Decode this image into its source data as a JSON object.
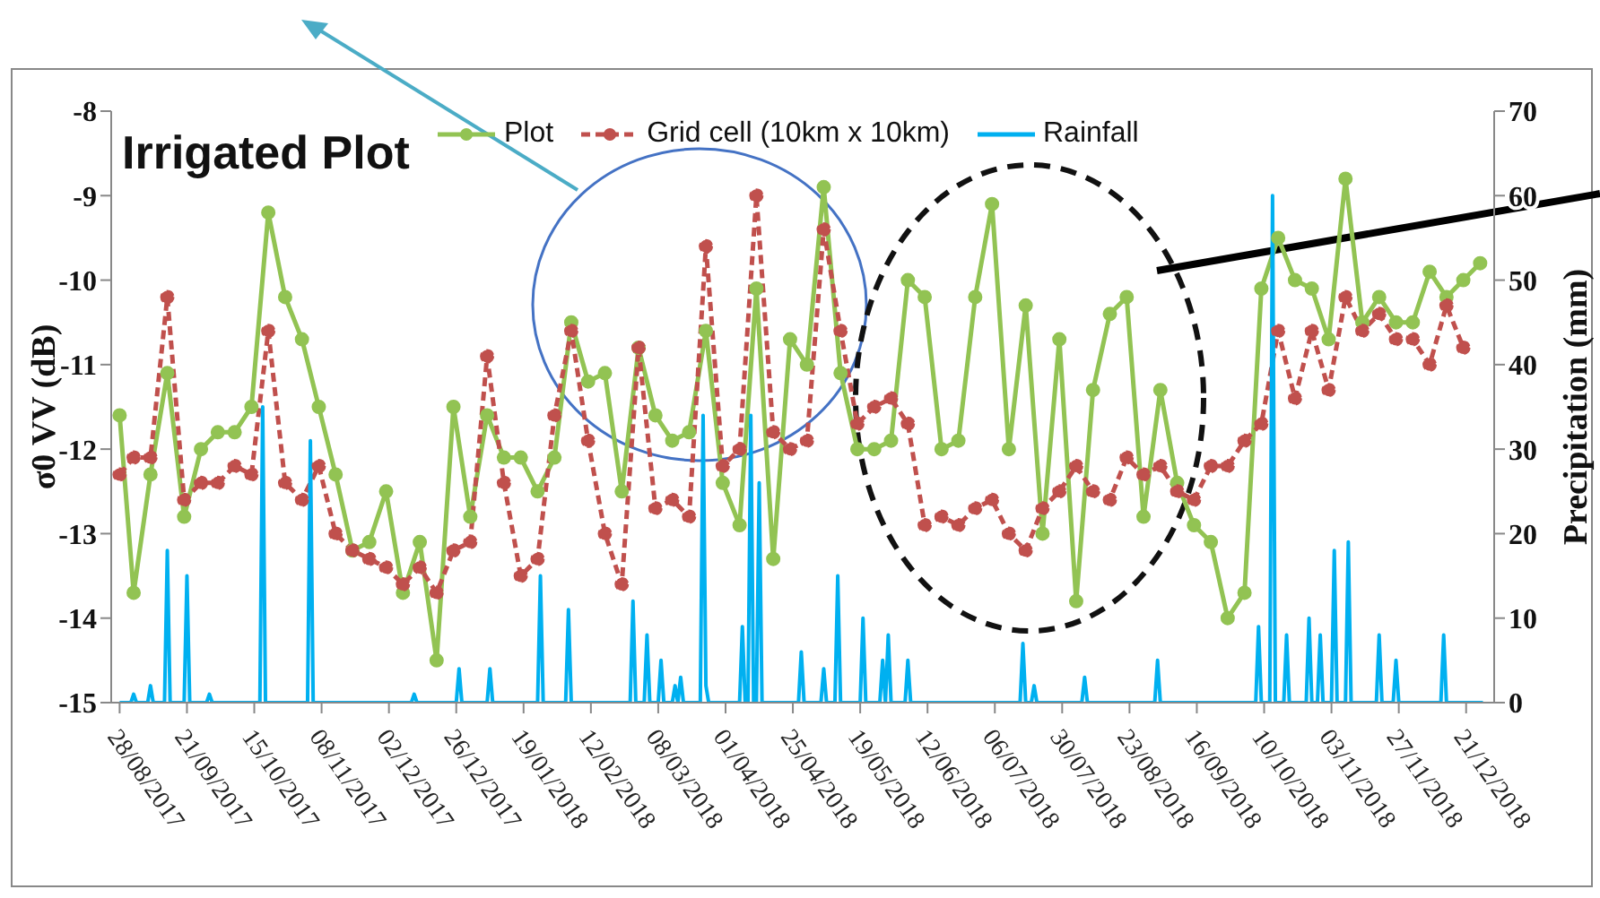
{
  "chart_data": {
    "type": "line",
    "title": "Irrigated Plot",
    "ylabel": "σ0 VV (dB)",
    "y2label": "Precipitation (mm)",
    "legend": "top",
    "xlim": [
      "2017-08-25",
      "2018-12-31"
    ],
    "xticks": [
      {
        "value": "2017-08-28",
        "label": "28/08/2017"
      },
      {
        "value": "2017-09-21",
        "label": "21/09/2017"
      },
      {
        "value": "2017-10-15",
        "label": "15/10/2017"
      },
      {
        "value": "2017-11-08",
        "label": "08/11/2017"
      },
      {
        "value": "2017-12-02",
        "label": "02/12/2017"
      },
      {
        "value": "2017-12-26",
        "label": "26/12/2017"
      },
      {
        "value": "2018-01-19",
        "label": "19/01/2018"
      },
      {
        "value": "2018-02-12",
        "label": "12/02/2018"
      },
      {
        "value": "2018-03-08",
        "label": "08/03/2018"
      },
      {
        "value": "2018-04-01",
        "label": "01/04/2018"
      },
      {
        "value": "2018-04-25",
        "label": "25/04/2018"
      },
      {
        "value": "2018-05-19",
        "label": "19/05/2018"
      },
      {
        "value": "2018-06-12",
        "label": "12/06/2018"
      },
      {
        "value": "2018-07-06",
        "label": "06/07/2018"
      },
      {
        "value": "2018-07-30",
        "label": "30/07/2018"
      },
      {
        "value": "2018-08-23",
        "label": "23/08/2018"
      },
      {
        "value": "2018-09-16",
        "label": "16/09/2018"
      },
      {
        "value": "2018-10-10",
        "label": "10/10/2018"
      },
      {
        "value": "2018-11-03",
        "label": "03/11/2018"
      },
      {
        "value": "2018-11-27",
        "label": "27/11/2018"
      },
      {
        "value": "2018-12-21",
        "label": "21/12/2018"
      }
    ],
    "ylim": [
      -15,
      -8
    ],
    "yticks": [
      -15,
      -14,
      -13,
      -12,
      -11,
      -10,
      -9,
      -8
    ],
    "y2lim": [
      0,
      70
    ],
    "y2ticks": [
      0,
      10,
      20,
      30,
      40,
      50,
      60,
      70
    ],
    "x": [
      "2017-08-28",
      "2017-09-02",
      "2017-09-08",
      "2017-09-14",
      "2017-09-20",
      "2017-09-26",
      "2017-10-02",
      "2017-10-08",
      "2017-10-14",
      "2017-10-20",
      "2017-10-26",
      "2017-11-01",
      "2017-11-07",
      "2017-11-13",
      "2017-11-19",
      "2017-11-25",
      "2017-12-01",
      "2017-12-07",
      "2017-12-13",
      "2017-12-19",
      "2017-12-25",
      "2017-12-31",
      "2018-01-06",
      "2018-01-12",
      "2018-01-18",
      "2018-01-24",
      "2018-01-30",
      "2018-02-05",
      "2018-02-11",
      "2018-02-17",
      "2018-02-23",
      "2018-03-01",
      "2018-03-07",
      "2018-03-13",
      "2018-03-19",
      "2018-03-25",
      "2018-03-31",
      "2018-04-06",
      "2018-04-12",
      "2018-04-18",
      "2018-04-24",
      "2018-04-30",
      "2018-05-06",
      "2018-05-12",
      "2018-05-18",
      "2018-05-24",
      "2018-05-30",
      "2018-06-05",
      "2018-06-11",
      "2018-06-17",
      "2018-06-23",
      "2018-06-29",
      "2018-07-05",
      "2018-07-11",
      "2018-07-17",
      "2018-07-23",
      "2018-07-29",
      "2018-08-04",
      "2018-08-10",
      "2018-08-16",
      "2018-08-22",
      "2018-08-28",
      "2018-09-03",
      "2018-09-09",
      "2018-09-15",
      "2018-09-21",
      "2018-09-27",
      "2018-10-03",
      "2018-10-09",
      "2018-10-15",
      "2018-10-21",
      "2018-10-27",
      "2018-11-02",
      "2018-11-08",
      "2018-11-14",
      "2018-11-20",
      "2018-11-26",
      "2018-12-02",
      "2018-12-08",
      "2018-12-14",
      "2018-12-20",
      "2018-12-26"
    ],
    "series": [
      {
        "name": "Plot",
        "type": "line",
        "color": "#92c353",
        "marker": "circle",
        "line_style": "solid",
        "values": [
          -11.6,
          -13.7,
          -12.3,
          -11.1,
          -12.8,
          -12.0,
          -11.8,
          -11.8,
          -11.5,
          -9.2,
          -10.2,
          -10.7,
          -11.5,
          -12.3,
          -13.2,
          -13.1,
          -12.5,
          -13.7,
          -13.1,
          -14.5,
          -11.5,
          -12.8,
          -11.6,
          -12.1,
          -12.1,
          -12.5,
          -12.1,
          -10.5,
          -11.2,
          -11.1,
          -12.5,
          -10.8,
          -11.6,
          -11.9,
          -11.8,
          -10.6,
          -12.4,
          -12.9,
          -10.1,
          -13.3,
          -10.7,
          -11.0,
          -8.9,
          -11.1,
          -12.0,
          -12.0,
          -11.9,
          -10.0,
          -10.2,
          -12.0,
          -11.9,
          -10.2,
          -9.1,
          -12.0,
          -10.3,
          -13.0,
          -10.7,
          -13.8,
          -11.3,
          -10.4,
          -10.2,
          -12.8,
          -11.3,
          -12.4,
          -12.9,
          -13.1,
          -14.0,
          -13.7,
          -10.1,
          -9.5,
          -10.0,
          -10.1,
          -10.7,
          -8.8,
          -10.5,
          -10.2,
          -10.5,
          -10.5,
          -9.9,
          -10.2,
          -10.0,
          -9.8
        ]
      },
      {
        "name": "Grid cell (10km x 10km)",
        "type": "line",
        "color": "#c0504d",
        "marker": "circle",
        "line_style": "dashed",
        "values": [
          -12.3,
          -12.1,
          -12.1,
          -10.2,
          -12.6,
          -12.4,
          -12.4,
          -12.2,
          -12.3,
          -10.6,
          -12.4,
          -12.6,
          -12.2,
          -13.0,
          -13.2,
          -13.3,
          -13.4,
          -13.6,
          -13.4,
          -13.7,
          -13.2,
          -13.1,
          -10.9,
          -12.4,
          -13.5,
          -13.3,
          -11.6,
          -10.6,
          -11.9,
          -13.0,
          -13.6,
          -10.8,
          -12.7,
          -12.6,
          -12.8,
          -9.6,
          -12.2,
          -12.0,
          -9.0,
          -11.8,
          -12.0,
          -11.9,
          -9.4,
          -10.6,
          -11.7,
          -11.5,
          -11.4,
          -11.7,
          -12.9,
          -12.8,
          -12.9,
          -12.7,
          -12.6,
          -13.0,
          -13.2,
          -12.7,
          -12.5,
          -12.2,
          -12.5,
          -12.6,
          -12.1,
          -12.3,
          -12.2,
          -12.5,
          -12.6,
          -12.2,
          -12.2,
          -11.9,
          -11.7,
          -10.6,
          -11.4,
          -10.6,
          -11.3,
          -10.2,
          -10.6,
          -10.4,
          -10.7,
          -10.7,
          -11.0,
          -10.3,
          -10.8,
          null
        ]
      },
      {
        "name": "Rainfall",
        "type": "line",
        "axis": "y2",
        "color": "#00b0f0",
        "marker": "none",
        "line_style": "solid",
        "x": [
          "2017-08-28",
          "2017-09-01",
          "2017-09-02",
          "2017-09-03",
          "2017-09-07",
          "2017-09-08",
          "2017-09-09",
          "2017-09-13",
          "2017-09-14",
          "2017-09-15",
          "2017-09-20",
          "2017-09-21",
          "2017-09-22",
          "2017-09-28",
          "2017-09-29",
          "2017-09-30",
          "2017-10-17",
          "2017-10-18",
          "2017-10-19",
          "2017-11-03",
          "2017-11-04",
          "2017-11-05",
          "2017-12-10",
          "2017-12-11",
          "2017-12-12",
          "2017-12-26",
          "2017-12-27",
          "2017-12-28",
          "2018-01-06",
          "2018-01-07",
          "2018-01-08",
          "2018-01-24",
          "2018-01-25",
          "2018-01-26",
          "2018-02-03",
          "2018-02-04",
          "2018-02-05",
          "2018-02-26",
          "2018-02-27",
          "2018-02-28",
          "2018-03-03",
          "2018-03-04",
          "2018-03-05",
          "2018-03-08",
          "2018-03-09",
          "2018-03-10",
          "2018-03-13",
          "2018-03-14",
          "2018-03-15",
          "2018-03-16",
          "2018-03-17",
          "2018-03-23",
          "2018-03-24",
          "2018-03-25",
          "2018-03-26",
          "2018-04-06",
          "2018-04-07",
          "2018-04-08",
          "2018-04-09",
          "2018-04-10",
          "2018-04-11",
          "2018-04-12",
          "2018-04-13",
          "2018-04-14",
          "2018-04-27",
          "2018-04-28",
          "2018-04-29",
          "2018-05-05",
          "2018-05-06",
          "2018-05-07",
          "2018-05-10",
          "2018-05-11",
          "2018-05-12",
          "2018-05-19",
          "2018-05-20",
          "2018-05-21",
          "2018-05-26",
          "2018-05-27",
          "2018-05-28",
          "2018-05-29",
          "2018-05-30",
          "2018-06-04",
          "2018-06-05",
          "2018-06-06",
          "2018-07-15",
          "2018-07-16",
          "2018-07-17",
          "2018-07-19",
          "2018-07-20",
          "2018-07-21",
          "2018-08-06",
          "2018-08-07",
          "2018-08-08",
          "2018-09-01",
          "2018-09-02",
          "2018-09-03",
          "2018-10-07",
          "2018-10-08",
          "2018-10-09",
          "2018-10-12",
          "2018-10-13",
          "2018-10-14",
          "2018-10-17",
          "2018-10-18",
          "2018-10-19",
          "2018-10-25",
          "2018-10-26",
          "2018-10-27",
          "2018-10-29",
          "2018-10-30",
          "2018-10-31",
          "2018-11-03",
          "2018-11-04",
          "2018-11-05",
          "2018-11-08",
          "2018-11-09",
          "2018-11-10",
          "2018-11-19",
          "2018-11-20",
          "2018-11-21",
          "2018-11-25",
          "2018-11-26",
          "2018-11-27",
          "2018-12-12",
          "2018-12-13",
          "2018-12-14",
          "2018-12-27"
        ],
        "values": [
          0,
          0,
          1,
          0,
          0,
          2,
          0,
          0,
          18,
          0,
          0,
          15,
          0,
          0,
          1,
          0,
          0,
          35,
          0,
          0,
          31,
          0,
          0,
          1,
          0,
          0,
          4,
          0,
          0,
          4,
          0,
          0,
          15,
          0,
          0,
          11,
          0,
          0,
          12,
          0,
          0,
          8,
          0,
          0,
          5,
          0,
          0,
          2,
          0,
          3,
          0,
          0,
          34,
          2,
          0,
          0,
          9,
          0,
          0,
          34,
          0,
          0,
          26,
          0,
          0,
          6,
          0,
          0,
          4,
          0,
          0,
          15,
          0,
          0,
          10,
          0,
          0,
          5,
          0,
          8,
          0,
          0,
          5,
          0,
          0,
          7,
          0,
          0,
          2,
          0,
          0,
          3,
          0,
          0,
          5,
          0,
          0,
          9,
          0,
          0,
          60,
          0,
          0,
          8,
          0,
          0,
          10,
          0,
          0,
          8,
          0,
          0,
          18,
          0,
          0,
          19,
          0,
          0,
          8,
          0,
          0,
          5,
          0,
          0,
          8,
          0,
          0
        ]
      }
    ]
  }
}
